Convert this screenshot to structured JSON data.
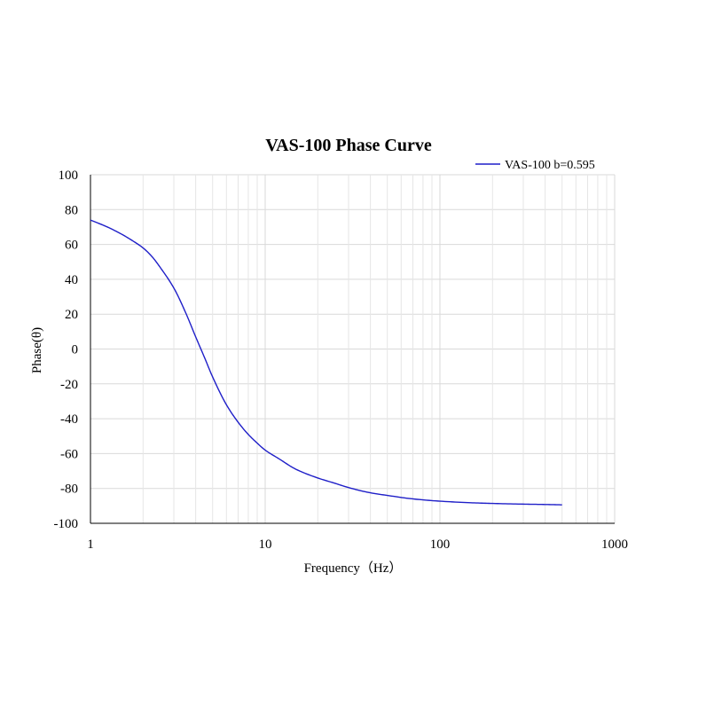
{
  "chart_data": {
    "type": "line",
    "title": "VAS-100 Phase Curve",
    "xlabel": "Frequency（Hz）",
    "ylabel": "Phase(θ)",
    "x_scale": "log",
    "xlim": [
      1,
      1000
    ],
    "ylim": [
      -100,
      100
    ],
    "x_ticks": [
      1,
      10,
      100,
      1000
    ],
    "y_ticks": [
      100,
      80,
      60,
      40,
      20,
      0,
      -20,
      -40,
      -60,
      -80,
      -100
    ],
    "grid": true,
    "legend_position": "top-right",
    "series": [
      {
        "name": "VAS-100 b=0.595",
        "color": "#1f1fc8",
        "x": [
          1,
          1.25,
          1.5,
          1.75,
          2,
          2.25,
          2.5,
          3,
          3.5,
          4,
          4.5,
          5,
          6,
          7,
          8,
          9,
          10,
          12,
          15,
          20,
          25,
          30,
          40,
          50,
          70,
          100,
          150,
          200,
          300,
          400,
          500
        ],
        "y": [
          74,
          70,
          66,
          62,
          58,
          53,
          47,
          35,
          21,
          7,
          -5,
          -16,
          -32,
          -42,
          -49,
          -54,
          -58,
          -63,
          -69,
          -74,
          -77,
          -79.5,
          -82.5,
          -84,
          -86,
          -87.3,
          -88.2,
          -88.6,
          -89,
          -89.2,
          -89.4
        ]
      }
    ]
  }
}
